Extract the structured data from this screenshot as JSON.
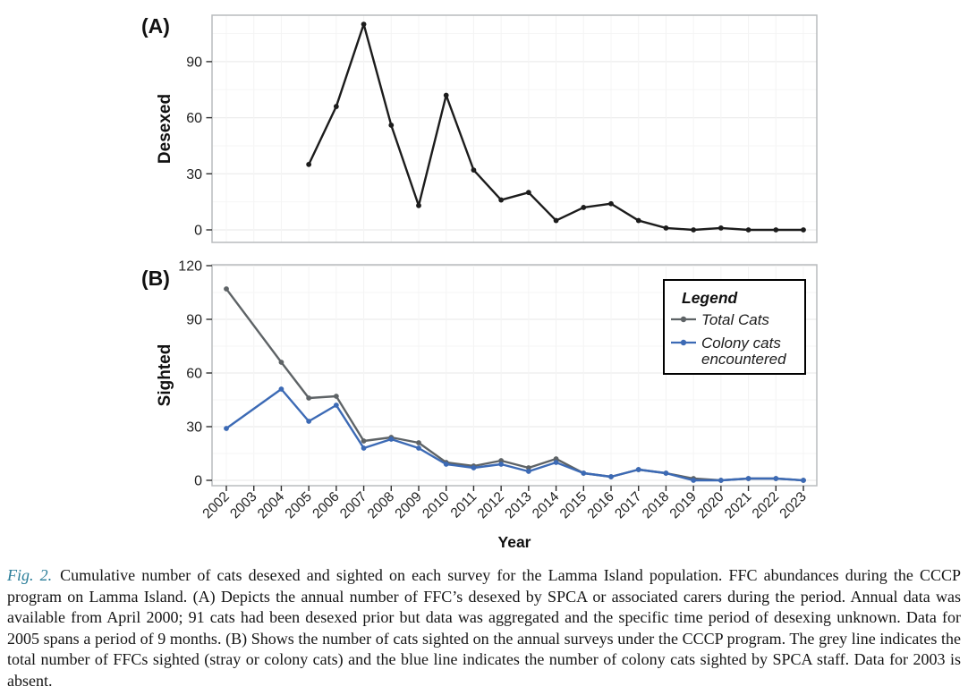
{
  "figure": {
    "panel_a_label": "(A)",
    "panel_b_label": "(B)",
    "colors": {
      "desexed_line": "#1c1c1c",
      "total_cats_line": "#5e6366",
      "colony_cats_line": "#3c6ab5",
      "panel_border": "#b9bcbd",
      "grid_major": "#ececec",
      "grid_minor": "#f6f6f6",
      "tick": "#2f2f2f",
      "caption_lead": "#2b7e99"
    }
  },
  "chart_data": [
    {
      "type": "line",
      "panel": "(A)",
      "title": "",
      "xlabel": "",
      "ylabel": "Desexed",
      "ylim": [
        0,
        115
      ],
      "yticks": [
        0,
        30,
        60,
        90
      ],
      "yticks_minor": [
        15,
        45,
        75,
        105
      ],
      "grid": true,
      "categories": [
        "2002",
        "2003",
        "2004",
        "2005",
        "2006",
        "2007",
        "2008",
        "2009",
        "2010",
        "2011",
        "2012",
        "2013",
        "2014",
        "2015",
        "2016",
        "2017",
        "2018",
        "2019",
        "2020",
        "2021",
        "2022",
        "2023"
      ],
      "series": [
        {
          "name": "Desexed",
          "color": "#1c1c1c",
          "values": [
            null,
            null,
            null,
            35,
            66,
            110,
            56,
            13,
            72,
            32,
            16,
            20,
            5,
            12,
            14,
            5,
            1,
            0,
            1,
            0,
            0,
            0
          ]
        }
      ]
    },
    {
      "type": "line",
      "panel": "(B)",
      "title": "",
      "xlabel": "Year",
      "ylabel": "Sighted",
      "ylim": [
        0,
        120
      ],
      "yticks": [
        0,
        30,
        60,
        90,
        120
      ],
      "yticks_minor": [
        15,
        45,
        75,
        105
      ],
      "grid": true,
      "legend": {
        "title": "Legend",
        "position": "top-right"
      },
      "categories": [
        "2002",
        "2003",
        "2004",
        "2005",
        "2006",
        "2007",
        "2008",
        "2009",
        "2010",
        "2011",
        "2012",
        "2013",
        "2014",
        "2015",
        "2016",
        "2017",
        "2018",
        "2019",
        "2020",
        "2021",
        "2022",
        "2023"
      ],
      "series": [
        {
          "name": "Total Cats",
          "legend_lines": [
            "Total Cats"
          ],
          "color": "#5e6366",
          "values": [
            107,
            null,
            66,
            46,
            47,
            22,
            24,
            21,
            10,
            8,
            11,
            7,
            12,
            4,
            2,
            6,
            4,
            1,
            0,
            1,
            1,
            0
          ]
        },
        {
          "name": "Colony cats encountered",
          "legend_lines": [
            "Colony cats",
            "encountered"
          ],
          "color": "#3c6ab5",
          "values": [
            29,
            null,
            51,
            33,
            42,
            18,
            23,
            18,
            9,
            7,
            9,
            5,
            10,
            4,
            2,
            6,
            4,
            0,
            0,
            1,
            1,
            0
          ]
        }
      ]
    }
  ],
  "caption": {
    "lead": "Fig. 2.",
    "text": "Cumulative number of cats desexed and sighted on each survey for the Lamma Island population. FFC abundances during the CCCP program on Lamma Island. (A) Depicts the annual number of FFC’s desexed by SPCA or associated carers during the period. Annual data was available from April 2000; 91 cats had been desexed prior but data was aggregated and the specific time period of desexing unknown. Data for 2005 spans a period of 9 months. (B) Shows the number of cats sighted on the annual surveys under the CCCP program. The grey line indicates the total number of FFCs sighted (stray or colony cats) and the blue line indicates the number of colony cats sighted by SPCA staff. Data for 2003 is absent."
  }
}
